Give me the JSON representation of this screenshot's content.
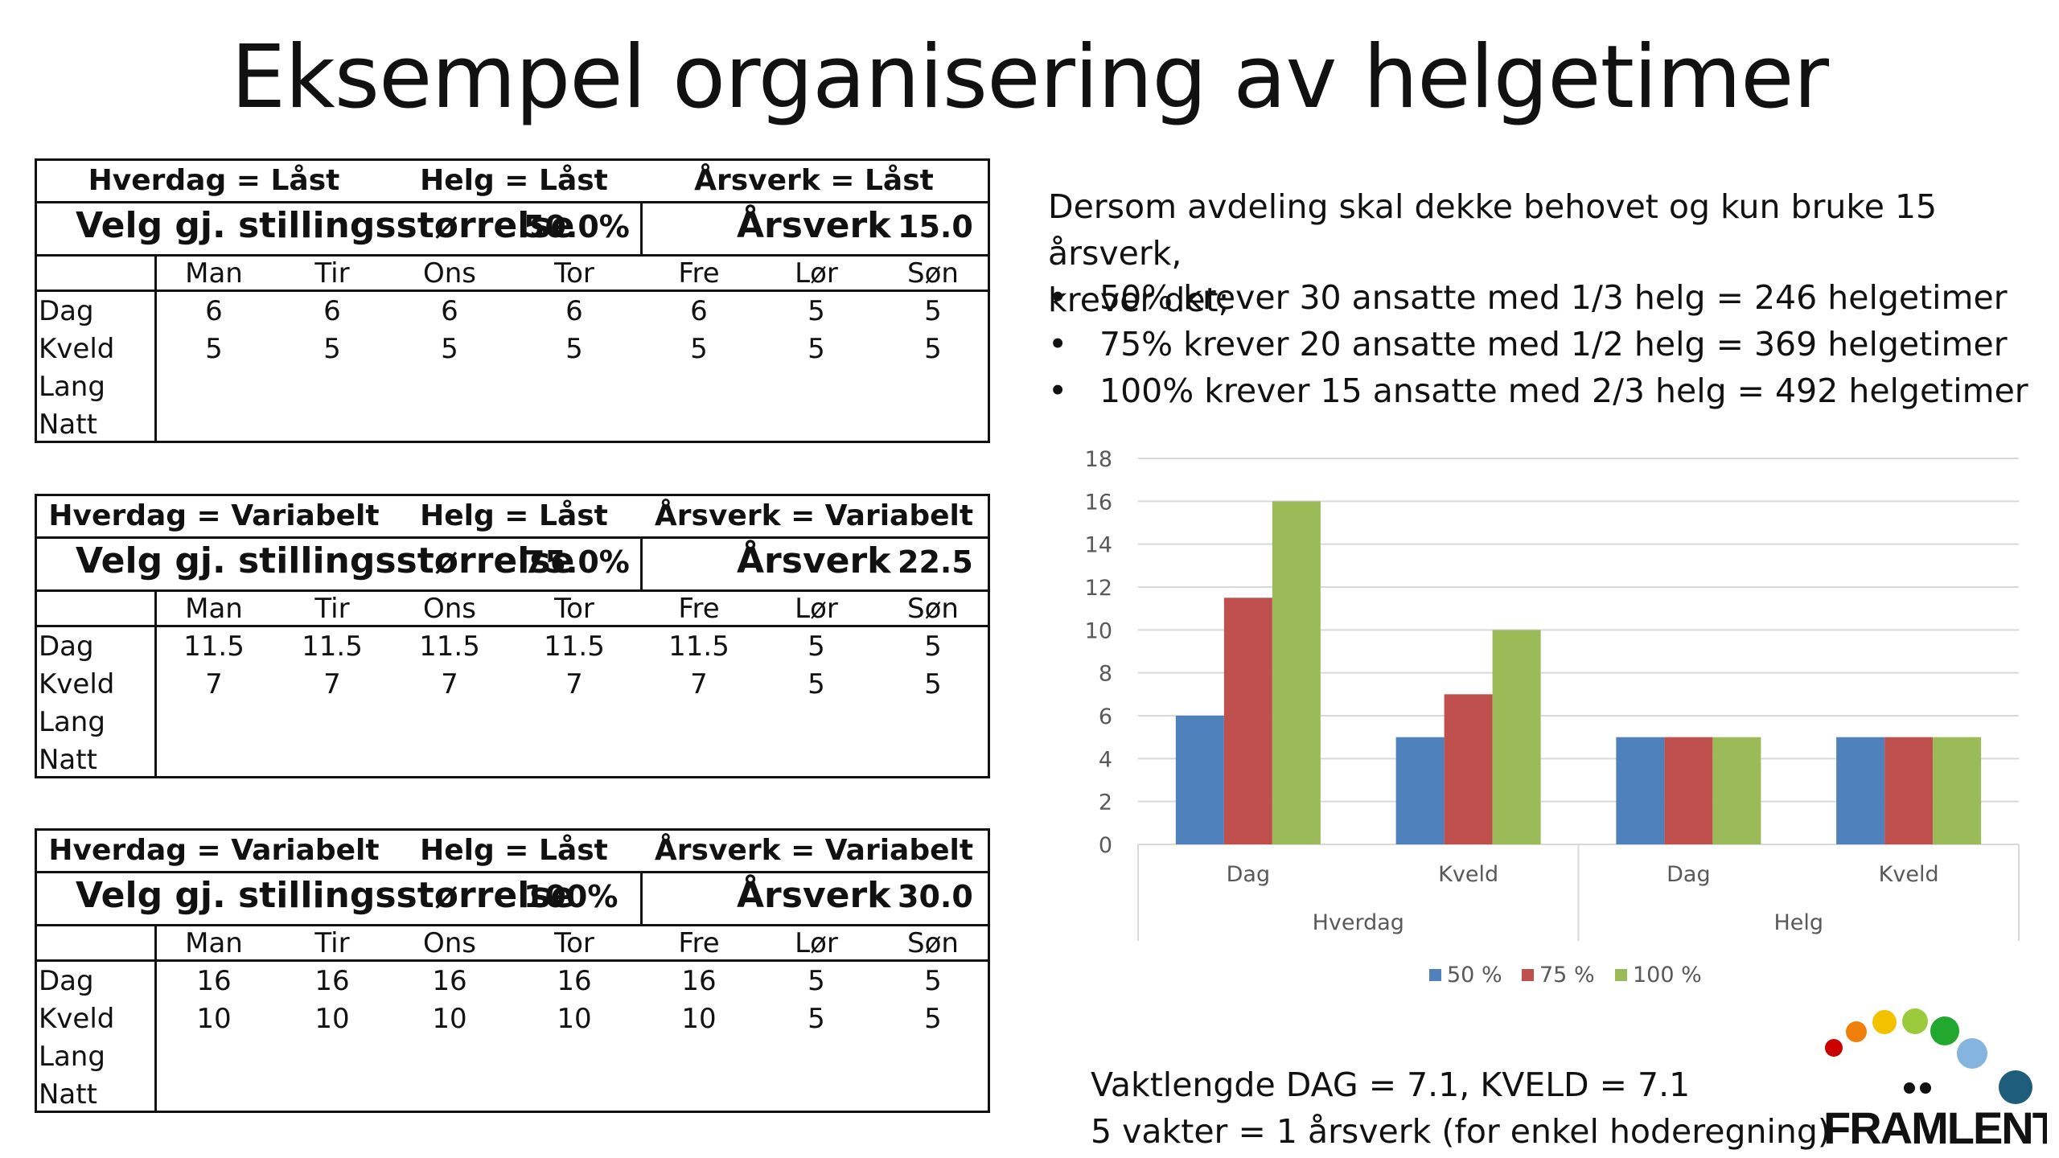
{
  "title": "Eksempel organisering av helgetimer",
  "scenarios": [
    {
      "hverdag": "Hverdag = Låst",
      "helg": "Helg = Låst",
      "arsverk_lock": "Årsverk = Låst",
      "velg_label": "Velg gj. stillingsstørrelse",
      "velg_value": "50.0%",
      "arsverk_label": "Årsverk",
      "arsverk_value": "15.0",
      "days": [
        "Man",
        "Tir",
        "Ons",
        "Tor",
        "Fre",
        "Lør",
        "Søn"
      ],
      "row_labels": [
        "Dag",
        "Kveld",
        "Lang",
        "Natt"
      ],
      "rows": [
        [
          "6",
          "6",
          "6",
          "6",
          "6",
          "5",
          "5"
        ],
        [
          "5",
          "5",
          "5",
          "5",
          "5",
          "5",
          "5"
        ]
      ]
    },
    {
      "hverdag": "Hverdag = Variabelt",
      "helg": "Helg = Låst",
      "arsverk_lock": "Årsverk = Variabelt",
      "velg_label": "Velg gj. stillingsstørrelse",
      "velg_value": "75.0%",
      "arsverk_label": "Årsverk",
      "arsverk_value": "22.5",
      "days": [
        "Man",
        "Tir",
        "Ons",
        "Tor",
        "Fre",
        "Lør",
        "Søn"
      ],
      "row_labels": [
        "Dag",
        "Kveld",
        "Lang",
        "Natt"
      ],
      "rows": [
        [
          "11.5",
          "11.5",
          "11.5",
          "11.5",
          "11.5",
          "5",
          "5"
        ],
        [
          "7",
          "7",
          "7",
          "7",
          "7",
          "5",
          "5"
        ]
      ]
    },
    {
      "hverdag": "Hverdag = Variabelt",
      "helg": "Helg = Låst",
      "arsverk_lock": "Årsverk = Variabelt",
      "velg_label": "Velg gj. stillingsstørrelse",
      "velg_value": "100%",
      "arsverk_label": "Årsverk",
      "arsverk_value": "30.0",
      "days": [
        "Man",
        "Tir",
        "Ons",
        "Tor",
        "Fre",
        "Lør",
        "Søn"
      ],
      "row_labels": [
        "Dag",
        "Kveld",
        "Lang",
        "Natt"
      ],
      "rows": [
        [
          "16",
          "16",
          "16",
          "16",
          "16",
          "5",
          "5"
        ],
        [
          "10",
          "10",
          "10",
          "10",
          "10",
          "5",
          "5"
        ]
      ]
    }
  ],
  "intro_line1": "Dersom avdeling skal dekke behovet og kun bruke 15 årsverk,",
  "intro_line2": "krever det;",
  "bullet_char": "•",
  "bullets": [
    "50% krever 30 ansatte med 1/3 helg = 246 helgetimer",
    "75% krever 20 ansatte med 1/2 helg = 369 helgetimer",
    "100% krever 15 ansatte med 2/3 helg = 492 helgetimer"
  ],
  "footer_line1": "Vaktlengde DAG = 7.1, KVELD = 7.1",
  "footer_line2": "5 vakter = 1 årsverk (for enkel hoderegning)",
  "logo_text": "FRAMLENT",
  "logo_colors": [
    "#cc0000",
    "#f07f09",
    "#f2c200",
    "#9bcb3c",
    "#23a82f",
    "#86b4e0",
    "#1f5e7a"
  ],
  "chart_data": {
    "type": "bar",
    "categories": [
      "Dag",
      "Kveld",
      "Dag",
      "Kveld"
    ],
    "groups": [
      {
        "name": "Hverdag",
        "categories": [
          "Dag",
          "Kveld"
        ]
      },
      {
        "name": "Helg",
        "categories": [
          "Dag",
          "Kveld"
        ]
      }
    ],
    "series": [
      {
        "name": "50 %",
        "color": "#4f81bd",
        "values": [
          6,
          5,
          5,
          5
        ]
      },
      {
        "name": "75 %",
        "color": "#c0504d",
        "values": [
          11.5,
          7,
          5,
          5
        ]
      },
      {
        "name": "100 %",
        "color": "#9bbb59",
        "values": [
          16,
          10,
          5,
          5
        ]
      }
    ],
    "ylim": [
      0,
      18
    ],
    "yticks": [
      "0",
      "2",
      "4",
      "6",
      "8",
      "10",
      "12",
      "14",
      "16",
      "18"
    ],
    "grid": true,
    "legend": "bottom"
  }
}
